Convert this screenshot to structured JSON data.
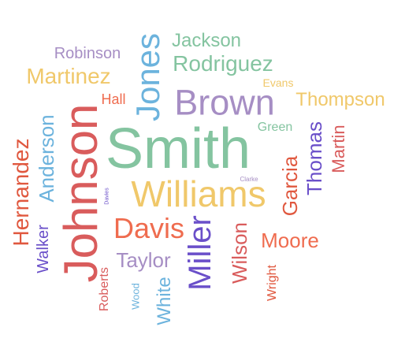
{
  "colors": {
    "background": "#ffffff",
    "red": "#d95c5c",
    "green": "#84c4a0",
    "yellow": "#f0c86a",
    "purple": "#a68ec4",
    "blue": "#6cb3dd",
    "indigo": "#6a4fc9",
    "orange": "#ef6c4f",
    "crimson": "#e0583f"
  },
  "words": {
    "smith": "Smith",
    "johnson": "Johnson",
    "williams": "Williams",
    "brown": "Brown",
    "jones": "Jones",
    "miller": "Miller",
    "davis": "Davis",
    "rodriguez": "Rodriguez",
    "martinez": "Martinez",
    "hernandez": "Hernandez",
    "garcia": "Garcia",
    "thomas": "Thomas",
    "wilson": "Wilson",
    "anderson": "Anderson",
    "thompson": "Thompson",
    "moore": "Moore",
    "taylor": "Taylor",
    "jackson": "Jackson",
    "white": "White",
    "martin": "Martin",
    "walker": "Walker",
    "robinson": "Robinson",
    "roberts": "Roberts",
    "wright": "Wright",
    "hall": "Hall",
    "green": "Green",
    "evans": "Evans",
    "wood": "Wood",
    "clarke": "Clarke",
    "davies": "Davies"
  }
}
